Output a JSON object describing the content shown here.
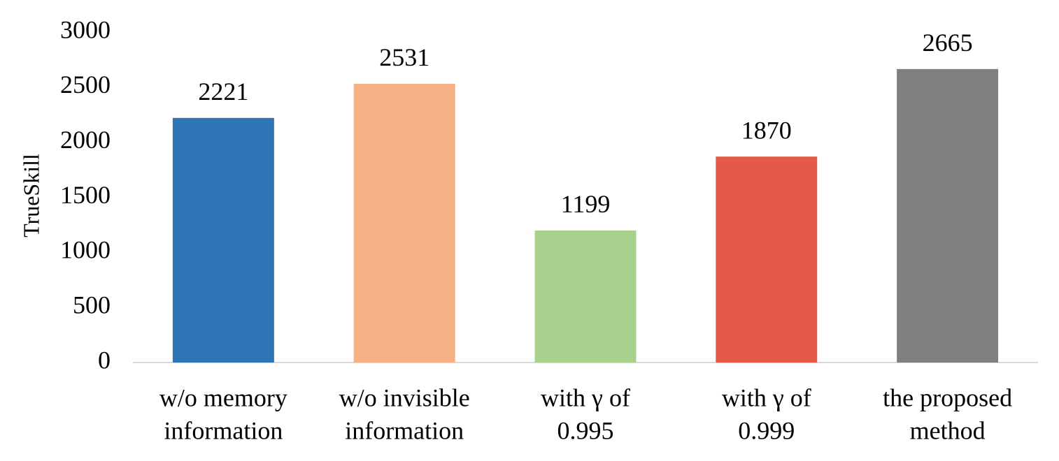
{
  "chart_data": {
    "type": "bar",
    "y_label": "TrueSkill",
    "categories": [
      [
        "w/o memory",
        "information"
      ],
      [
        "w/o invisible",
        "information"
      ],
      [
        "with γ of",
        "0.995"
      ],
      [
        "with γ of",
        "0.999"
      ],
      [
        "the proposed",
        "method"
      ]
    ],
    "values": [
      2221,
      2531,
      1199,
      1870,
      2665
    ],
    "colors": [
      "#2e75b6",
      "#f4b183",
      "#a9d18e",
      "#e5594b",
      "#7f7f7f"
    ],
    "ylim": [
      0,
      3000
    ],
    "yticks": [
      0,
      500,
      1000,
      1500,
      2000,
      2500,
      3000
    ],
    "grid": false
  }
}
